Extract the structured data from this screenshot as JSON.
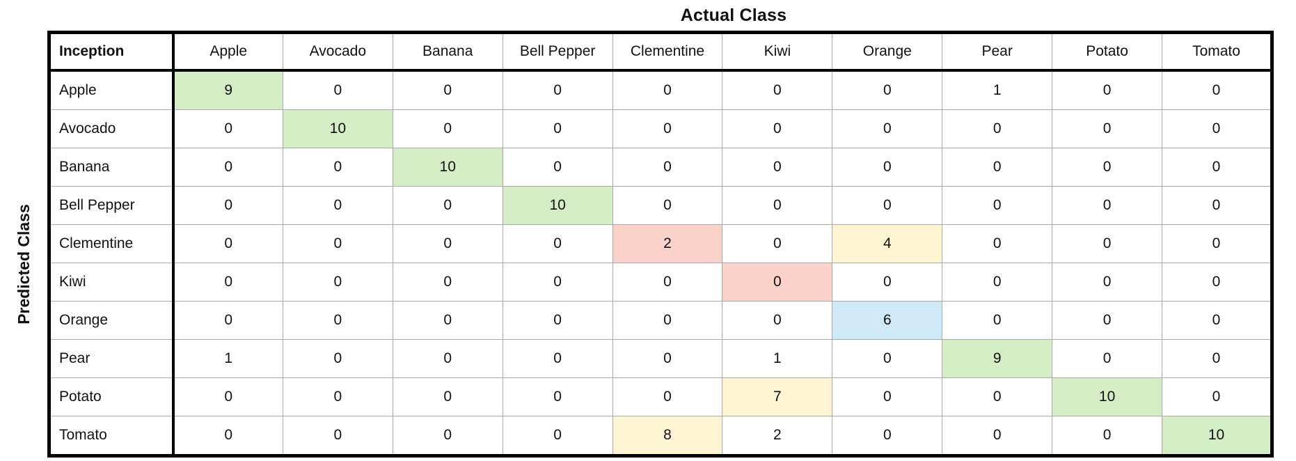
{
  "chart_data": {
    "type": "heatmap",
    "title": "Actual Class",
    "xlabel": "Actual Class",
    "ylabel": "Predicted Class",
    "corner_label": "Inception",
    "categories": [
      "Apple",
      "Avocado",
      "Banana",
      "Bell Pepper",
      "Clementine",
      "Kiwi",
      "Orange",
      "Pear",
      "Potato",
      "Tomato"
    ],
    "row_categories": [
      "Apple",
      "Avocado",
      "Banana",
      "Bell Pepper",
      "Clementine",
      "Kiwi",
      "Orange",
      "Pear",
      "Potato",
      "Tomato"
    ],
    "matrix": [
      [
        9,
        0,
        0,
        0,
        0,
        0,
        0,
        1,
        0,
        0
      ],
      [
        0,
        10,
        0,
        0,
        0,
        0,
        0,
        0,
        0,
        0
      ],
      [
        0,
        0,
        10,
        0,
        0,
        0,
        0,
        0,
        0,
        0
      ],
      [
        0,
        0,
        0,
        10,
        0,
        0,
        0,
        0,
        0,
        0
      ],
      [
        0,
        0,
        0,
        0,
        2,
        0,
        4,
        0,
        0,
        0
      ],
      [
        0,
        0,
        0,
        0,
        0,
        0,
        0,
        0,
        0,
        0
      ],
      [
        0,
        0,
        0,
        0,
        0,
        0,
        6,
        0,
        0,
        0
      ],
      [
        1,
        0,
        0,
        0,
        0,
        1,
        0,
        9,
        0,
        0
      ],
      [
        0,
        0,
        0,
        0,
        0,
        7,
        0,
        0,
        10,
        0
      ],
      [
        0,
        0,
        0,
        0,
        8,
        2,
        0,
        0,
        0,
        10
      ]
    ],
    "highlights": [
      {
        "row": 0,
        "col": 0,
        "color": "green"
      },
      {
        "row": 1,
        "col": 1,
        "color": "green"
      },
      {
        "row": 2,
        "col": 2,
        "color": "green"
      },
      {
        "row": 3,
        "col": 3,
        "color": "green"
      },
      {
        "row": 4,
        "col": 4,
        "color": "red"
      },
      {
        "row": 4,
        "col": 6,
        "color": "yellow"
      },
      {
        "row": 5,
        "col": 5,
        "color": "red"
      },
      {
        "row": 6,
        "col": 6,
        "color": "blue"
      },
      {
        "row": 7,
        "col": 7,
        "color": "green"
      },
      {
        "row": 8,
        "col": 5,
        "color": "yellow"
      },
      {
        "row": 8,
        "col": 8,
        "color": "green"
      },
      {
        "row": 9,
        "col": 4,
        "color": "yellow"
      },
      {
        "row": 9,
        "col": 9,
        "color": "green"
      }
    ],
    "palette": {
      "green": "#d5edc5",
      "red": "#fad2ca",
      "yellow": "#fdf4d1",
      "blue": "#cfe9f8"
    },
    "grid_color": "#a8a8a8",
    "border_color": "#000000"
  }
}
